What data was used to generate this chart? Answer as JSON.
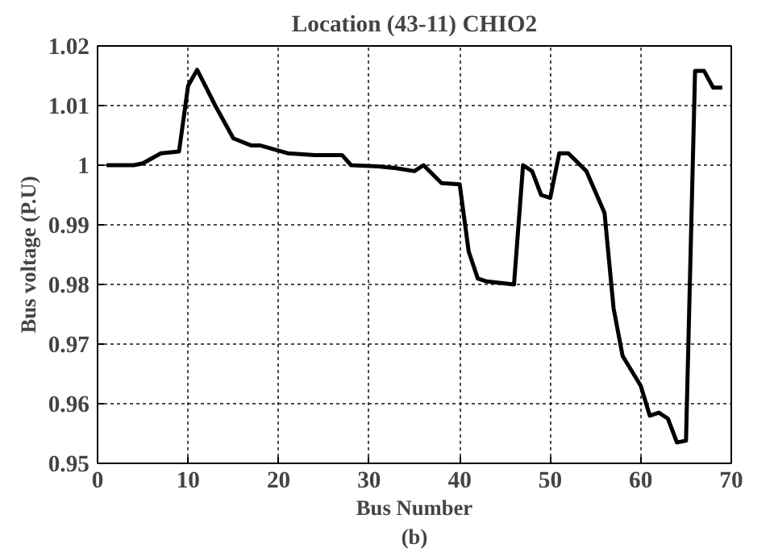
{
  "chart_data": {
    "type": "line",
    "title": "Location (43-11) CHIO2",
    "xlabel": "Bus Number\n(b)",
    "ylabel": "Bus voltage (P.U)",
    "xlim": [
      0,
      70
    ],
    "ylim": [
      0.95,
      1.02
    ],
    "xticks": [
      0,
      10,
      20,
      30,
      40,
      50,
      60,
      70
    ],
    "yticks": [
      0.95,
      0.96,
      0.97,
      0.98,
      0.99,
      1,
      1.01,
      1.02
    ],
    "grid": true,
    "series": [
      {
        "color": "#000000",
        "x": [
          1,
          4,
          5,
          7,
          9,
          10,
          11,
          13,
          15,
          17,
          18,
          21,
          24,
          27,
          28,
          31,
          33,
          35,
          36,
          38,
          40,
          41,
          42,
          43,
          46,
          47,
          48,
          49,
          50,
          51,
          52,
          54,
          56,
          57,
          58,
          60,
          61,
          62,
          63,
          64,
          65,
          66,
          67,
          68,
          69
        ],
        "values": [
          1.0,
          1.0,
          1.0003,
          1.002,
          1.0023,
          1.0133,
          1.016,
          1.01,
          1.0045,
          1.0033,
          1.0033,
          1.002,
          1.0017,
          1.0017,
          1.0,
          0.9998,
          0.9995,
          0.999,
          1.0,
          0.997,
          0.9968,
          0.9855,
          0.981,
          0.9805,
          0.98,
          1.0,
          0.999,
          0.995,
          0.9945,
          1.002,
          1.002,
          0.999,
          0.992,
          0.976,
          0.968,
          0.963,
          0.958,
          0.9585,
          0.9575,
          0.9535,
          0.9538,
          1.0158,
          1.0158,
          1.013,
          1.013
        ]
      }
    ]
  }
}
